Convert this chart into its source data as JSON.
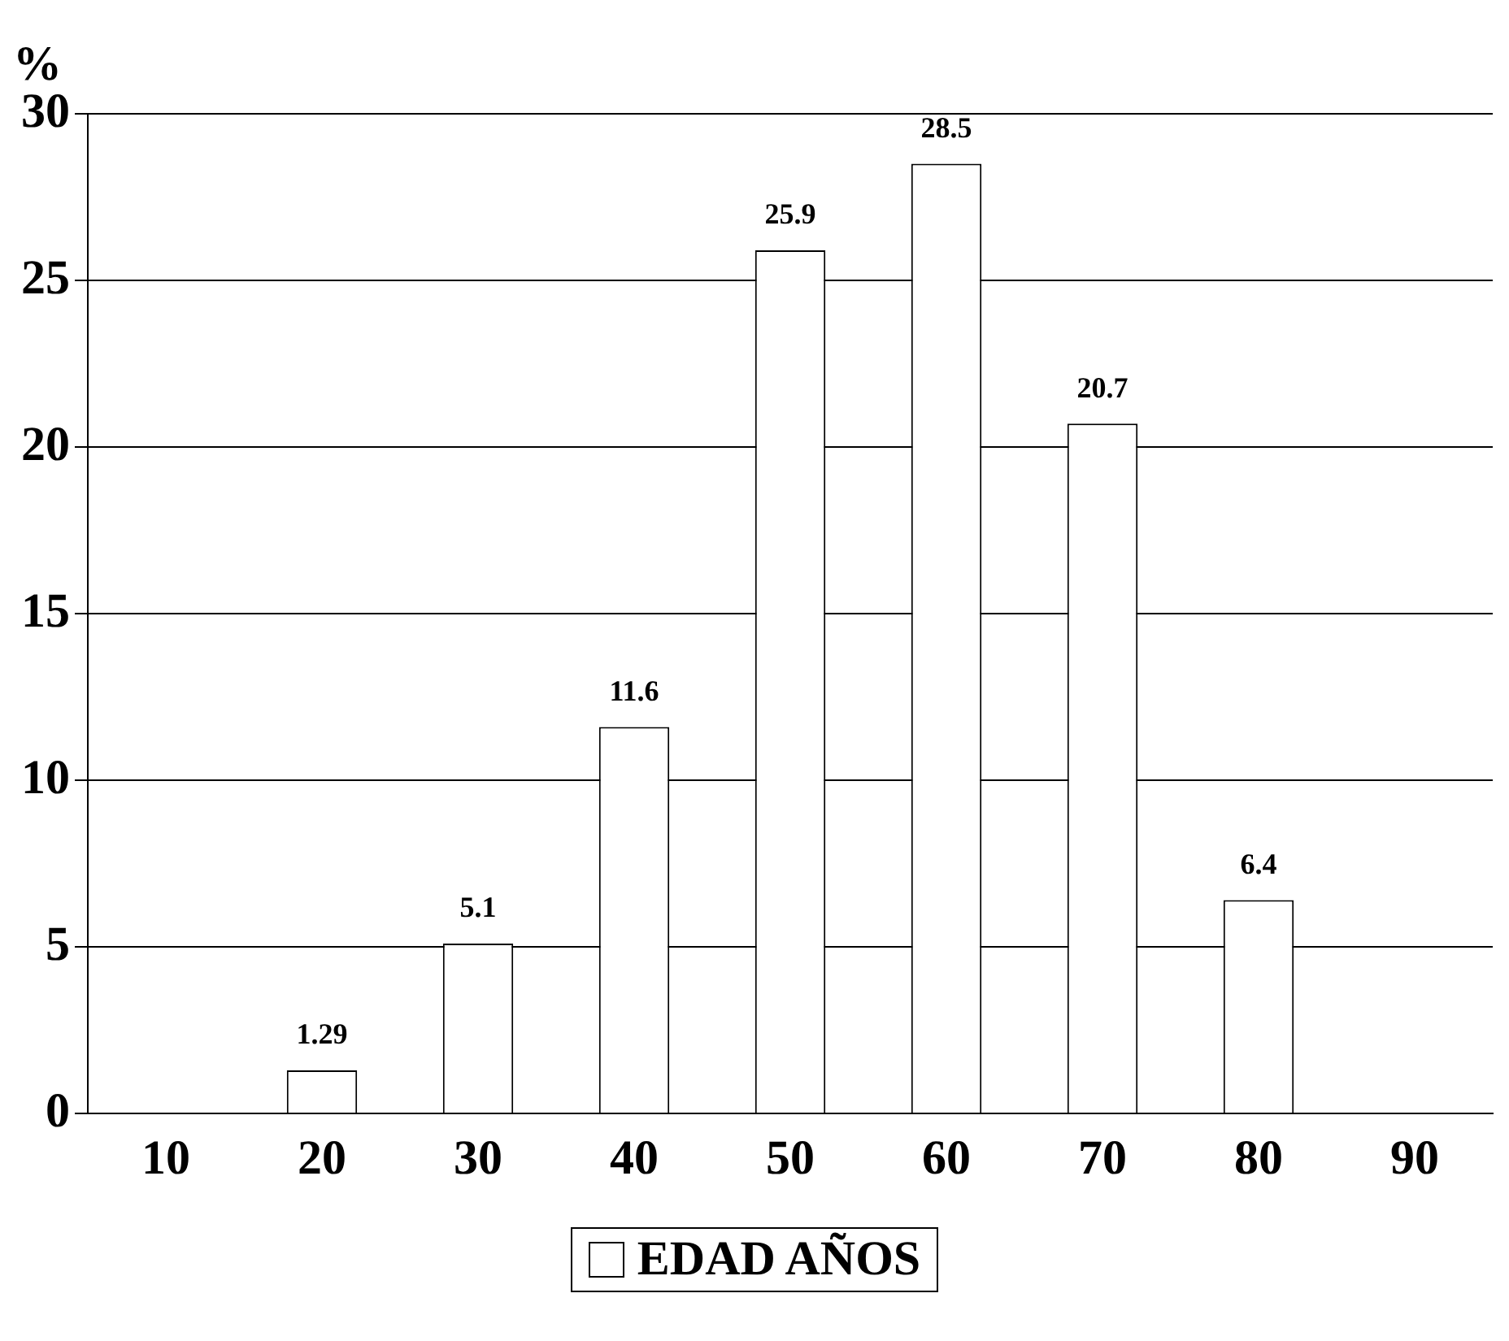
{
  "chart_data": {
    "type": "bar",
    "ylabel": "%",
    "categories": [
      "10",
      "20",
      "30",
      "40",
      "50",
      "60",
      "70",
      "80",
      "90"
    ],
    "series": [
      {
        "name": "EDAD AÑOS",
        "color": "#ffffff",
        "values": [
          null,
          1.29,
          5.1,
          11.6,
          25.9,
          28.5,
          20.7,
          6.4,
          null
        ]
      }
    ],
    "ylim": [
      0,
      30
    ],
    "yticks": [
      0,
      5,
      10,
      15,
      20,
      25,
      30
    ],
    "grid": "y",
    "legend": "bottom",
    "data_labels": true
  }
}
